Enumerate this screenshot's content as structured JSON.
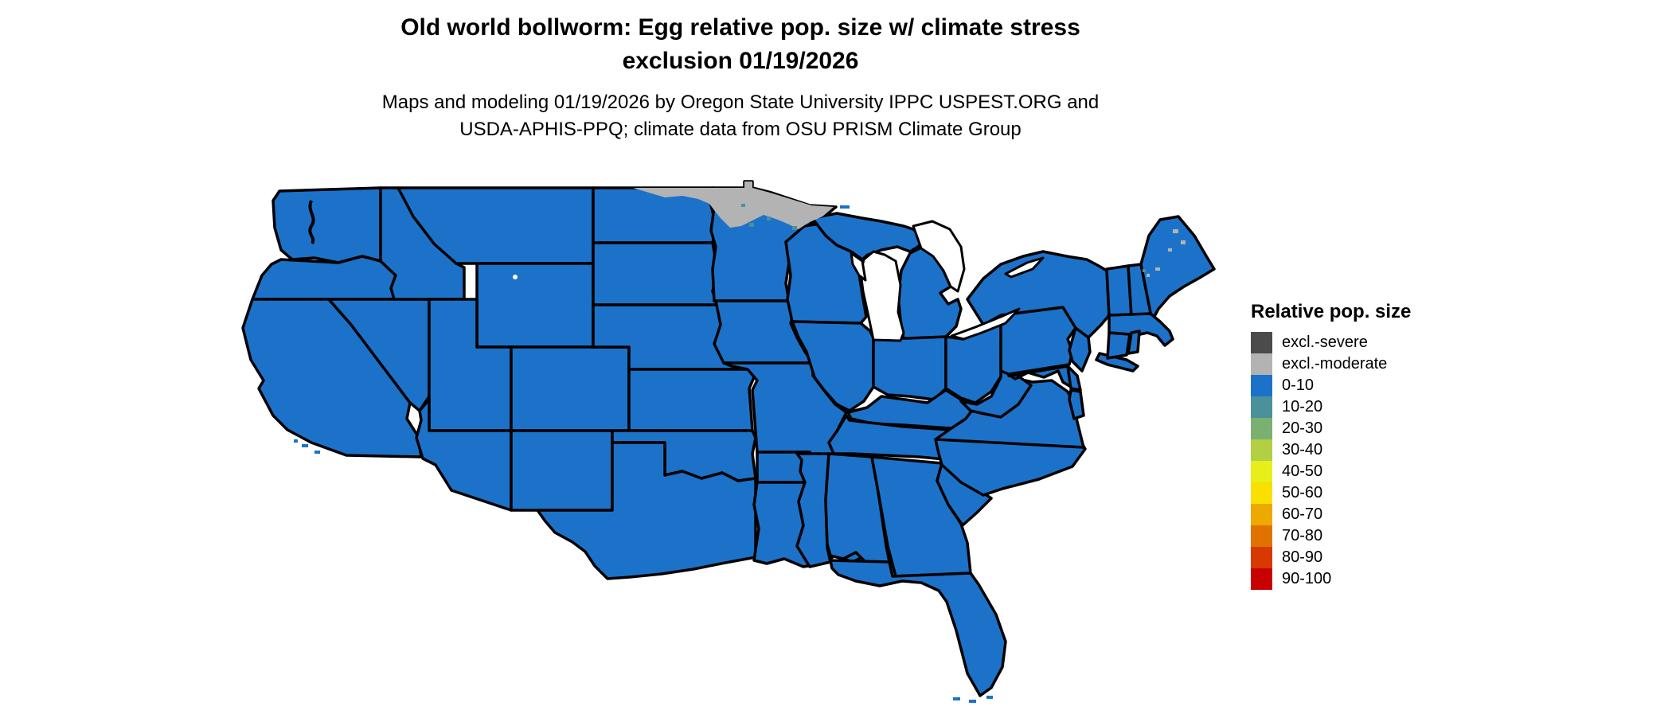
{
  "header": {
    "title_line1": "Old world bollworm: Egg relative pop. size w/ climate stress",
    "title_line2": "exclusion 01/19/2026",
    "subtitle_line1": "Maps and modeling 01/19/2026 by Oregon State University IPPC USPEST.ORG and",
    "subtitle_line2": "USDA-APHIS-PPQ; climate data from OSU PRISM Climate Group"
  },
  "legend": {
    "title": "Relative pop. size",
    "items": [
      {
        "label": "excl.-severe",
        "color": "#4b4b4b"
      },
      {
        "label": "excl.-moderate",
        "color": "#b3b3b3"
      },
      {
        "label": "0-10",
        "color": "#1c72c9"
      },
      {
        "label": "10-20",
        "color": "#4a919b"
      },
      {
        "label": "20-30",
        "color": "#7cb072"
      },
      {
        "label": "30-40",
        "color": "#b3cf44"
      },
      {
        "label": "40-50",
        "color": "#e7ef1a"
      },
      {
        "label": "50-60",
        "color": "#f8e000"
      },
      {
        "label": "60-70",
        "color": "#eda900"
      },
      {
        "label": "70-80",
        "color": "#e07300"
      },
      {
        "label": "80-90",
        "color": "#d63a00"
      },
      {
        "label": "90-100",
        "color": "#c80000"
      }
    ]
  },
  "map": {
    "colors": {
      "class_0_10": "#1c72c9",
      "class_10_20": "#4a919b",
      "excl_moderate": "#b3b3b3",
      "excl_severe": "#4b4b4b",
      "border": "#000000",
      "water": "#ffffff"
    },
    "date": "01/19/2026",
    "dominant_class": "0-10",
    "excluded_moderate_regions": [
      "northern North Dakota border strip",
      "northern Minnesota",
      "scattered patches in northern Maine"
    ]
  }
}
